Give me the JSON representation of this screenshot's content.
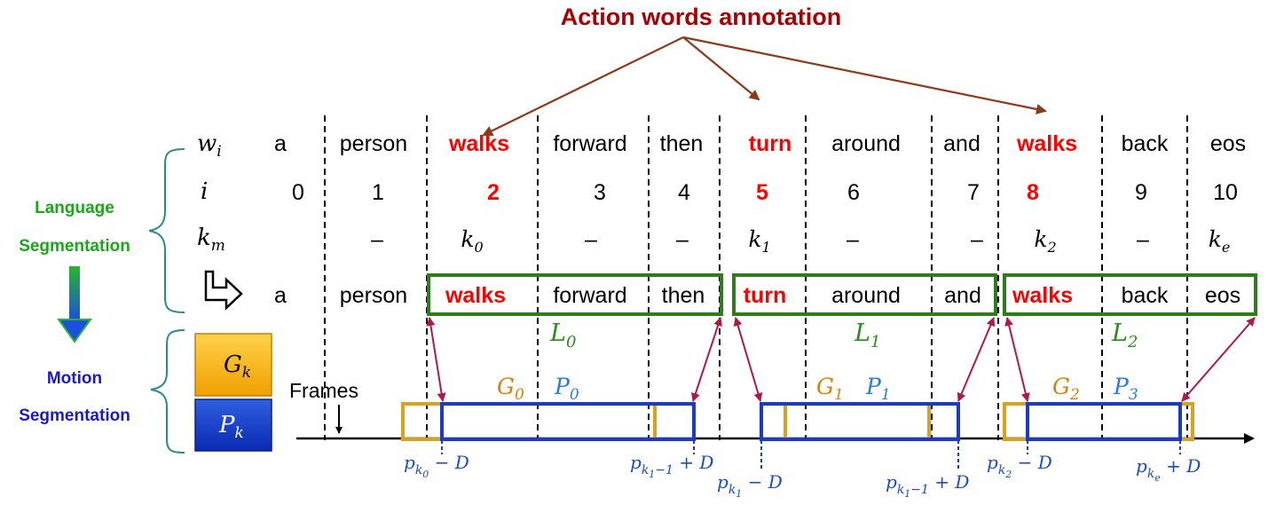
{
  "title": "Action words annotation",
  "side_labels": {
    "language": [
      "Language",
      "Segmentation"
    ],
    "motion": [
      "Motion",
      "Segmentation"
    ]
  },
  "legend": {
    "g": "G",
    "g_sub": "k",
    "p": "P",
    "p_sub": "k"
  },
  "row_labels": {
    "w": "w",
    "w_sub": "i",
    "i": "i",
    "k": "k",
    "k_sub": "m"
  },
  "words": [
    "a",
    "person",
    "walks",
    "forward",
    "then",
    "turn",
    "around",
    "and",
    "walks",
    "back",
    "eos"
  ],
  "indices": [
    "0",
    "1",
    "2",
    "3",
    "4",
    "5",
    "6",
    "7",
    "8",
    "9",
    "10"
  ],
  "action_indices": [
    2,
    5,
    8
  ],
  "k_values": [
    "",
    "–",
    "k0",
    "–",
    "–",
    "k1",
    "–",
    "–",
    "k2",
    "–",
    "ke"
  ],
  "k_display": [
    {
      "col": 1,
      "base": "–",
      "sub": ""
    },
    {
      "col": 2,
      "base": "k",
      "sub": "0"
    },
    {
      "col": 3,
      "base": "–",
      "sub": ""
    },
    {
      "col": 4,
      "base": "–",
      "sub": ""
    },
    {
      "col": 5,
      "base": "k",
      "sub": "1"
    },
    {
      "col": 6,
      "base": "–",
      "sub": ""
    },
    {
      "col": 7,
      "base": "–",
      "sub": ""
    },
    {
      "col": 8,
      "base": "k",
      "sub": "2"
    },
    {
      "col": 9,
      "base": "–",
      "sub": ""
    },
    {
      "col": 10,
      "base": "k",
      "sub": "e"
    }
  ],
  "segments": [
    {
      "L": "L",
      "L_sub": "0",
      "G": "G",
      "G_sub": "0",
      "P": "P",
      "P_sub": "0"
    },
    {
      "L": "L",
      "L_sub": "1",
      "G": "G",
      "G_sub": "1",
      "P": "P",
      "P_sub": "1"
    },
    {
      "L": "L",
      "L_sub": "2",
      "G": "G",
      "G_sub": "2",
      "P": "P",
      "P_sub": "3"
    }
  ],
  "frames_label": "Frames",
  "boundary_labels": [
    {
      "p": "p",
      "sub": "k",
      "subsub": "0",
      "tail": " − D"
    },
    {
      "p": "p",
      "sub": "k",
      "subsub": "1",
      "mid": "−1",
      "tail": " + D"
    },
    {
      "p": "p",
      "sub": "k",
      "subsub": "1",
      "tail": " − D"
    },
    {
      "p": "p",
      "sub": "k",
      "subsub": "1",
      "mid": "−1",
      "tail": " + D"
    },
    {
      "p": "p",
      "sub": "k",
      "subsub": "2",
      "tail": " − D"
    },
    {
      "p": "p",
      "sub": "k",
      "subsub": "e",
      "tail": " + D"
    }
  ],
  "colors": {
    "title_red": "#a80000",
    "action_red": "#ff0000",
    "brown_arrow": "#8b3a1a",
    "green_box": "#2e7d1a",
    "green_text": "#2a8a1a",
    "side_green": "#1aa81a",
    "side_blue": "#1a1acc",
    "gold": "#d9a21a",
    "blue": "#1a3acc",
    "pblue": "#2a7ae0",
    "crimson": "#b0184a",
    "teal": "#2a8a8a",
    "dashed_blue": "#1a3acc",
    "label_blue": "#1a4acc"
  }
}
